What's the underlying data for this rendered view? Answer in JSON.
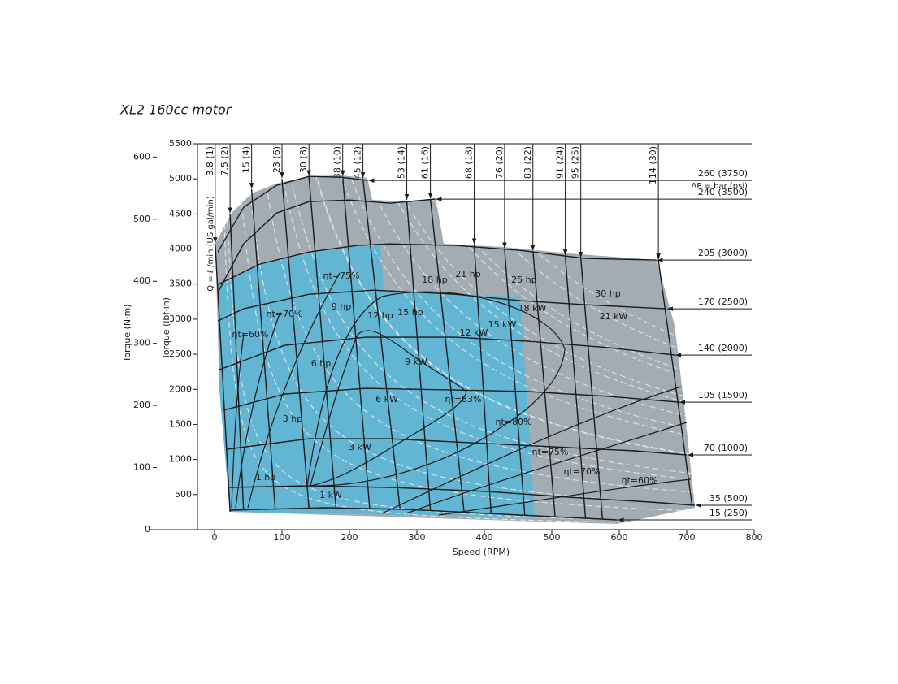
{
  "chart_data": {
    "type": "performance",
    "title": "XL2 160cc motor",
    "x_label": "Speed (RPM)",
    "y_label": "Torque (lbf·in)",
    "y2_label": "Torque (N·m)",
    "xlim": [
      -25,
      800
    ],
    "xticks": [
      0,
      100,
      200,
      300,
      400,
      500,
      600,
      700,
      800
    ],
    "ylim": [
      0,
      5500
    ],
    "yticks": [
      500,
      1000,
      1500,
      2000,
      2500,
      3000,
      3500,
      4000,
      4500,
      5000,
      5500
    ],
    "y2lim": [
      0,
      621.4
    ],
    "y2ticks": [
      0,
      100,
      200,
      300,
      400,
      500,
      600
    ],
    "pressure_label": "ΔP = bar (psi)",
    "flow_label": "Q = ℓ /min (US gal/min)",
    "colors": {
      "continuous": "#62b6d4",
      "intermittent": "#a3acb3",
      "line": "#1a1a1a",
      "power": "#dfe5e9"
    },
    "pressure_series": [
      {
        "name": "260 (3750)",
        "x": [
          5,
          43,
          92,
          140,
          188,
          227
        ],
        "values": [
          3958,
          4595,
          4907,
          5035,
          5023,
          4977
        ]
      },
      {
        "name": "240 (3500)",
        "x": [
          5,
          43,
          92,
          140,
          200,
          260,
          327
        ],
        "values": [
          3380,
          4074,
          4514,
          4676,
          4699,
          4653,
          4711
        ]
      },
      {
        "name": "205 (3000)",
        "x": [
          5,
          67,
          140,
          212,
          260,
          357,
          453,
          549,
          655
        ],
        "values": [
          3495,
          3785,
          3958,
          4051,
          4074,
          4051,
          3981,
          3866,
          3843
        ]
      },
      {
        "name": "170 (2500)",
        "x": [
          5,
          43,
          140,
          236,
          357,
          453,
          549,
          670
        ],
        "values": [
          2975,
          3148,
          3356,
          3414,
          3356,
          3264,
          3206,
          3148
        ]
      },
      {
        "name": "140 (2000)",
        "x": [
          7,
          104,
          224,
          357,
          465,
          586,
          682
        ],
        "values": [
          2280,
          2627,
          2743,
          2743,
          2685,
          2593,
          2488
        ]
      },
      {
        "name": "105 (1500)",
        "x": [
          13,
          104,
          224,
          357,
          465,
          586,
          688
        ],
        "values": [
          1701,
          1933,
          2014,
          1991,
          1968,
          1898,
          1817
        ]
      },
      {
        "name": "70 (1000)",
        "x": [
          19,
          140,
          260,
          381,
          501,
          622,
          700
        ],
        "values": [
          1146,
          1296,
          1296,
          1238,
          1181,
          1123,
          1065
        ]
      },
      {
        "name": "35 (500)",
        "x": [
          22,
          140,
          260,
          405,
          525,
          646,
          712
        ],
        "values": [
          602,
          625,
          602,
          544,
          463,
          394,
          347
        ]
      },
      {
        "name": "15 (250)",
        "x": [
          23,
          164,
          284,
          405,
          525,
          597
        ],
        "values": [
          278,
          313,
          289,
          231,
          174,
          139
        ]
      }
    ],
    "flow_series": [
      {
        "name": "3.8 (1)",
        "x": [
          1,
          23
        ],
        "values": [
          4074,
          255
        ]
      },
      {
        "name": "7.5 (2)",
        "x": [
          23,
          43
        ],
        "values": [
          4500,
          280
        ]
      },
      {
        "name": "15 (4)",
        "x": [
          55,
          90
        ],
        "values": [
          4850,
          280
        ]
      },
      {
        "name": "23 (6)",
        "x": [
          100,
          140
        ],
        "values": [
          5000,
          300
        ]
      },
      {
        "name": "30 (8)",
        "x": [
          140,
          180
        ],
        "values": [
          5030,
          300
        ]
      },
      {
        "name": "38 (10)",
        "x": [
          190,
          230
        ],
        "values": [
          5030,
          300
        ]
      },
      {
        "name": "45 (12)",
        "x": [
          220,
          275
        ],
        "values": [
          5000,
          290
        ]
      },
      {
        "name": "53 (14)",
        "x": [
          285,
          320
        ],
        "values": [
          4690,
          270
        ]
      },
      {
        "name": "61 (16)",
        "x": [
          320,
          370
        ],
        "values": [
          4710,
          250
        ]
      },
      {
        "name": "68 (18)",
        "x": [
          385,
          410
        ],
        "values": [
          4060,
          230
        ]
      },
      {
        "name": "76 (20)",
        "x": [
          430,
          460
        ],
        "values": [
          4000,
          200
        ]
      },
      {
        "name": "83 (22)",
        "x": [
          472,
          505
        ],
        "values": [
          3970,
          180
        ]
      },
      {
        "name": "91 (24)",
        "x": [
          520,
          550
        ],
        "values": [
          3900,
          160
        ]
      },
      {
        "name": "95 (25)",
        "x": [
          543,
          575
        ],
        "values": [
          3870,
          150
        ]
      },
      {
        "name": "114 (30)",
        "x": [
          658,
          708
        ],
        "values": [
          3843,
          347
        ]
      }
    ],
    "power_hp": {
      "values": [
        1,
        3,
        6,
        9,
        12,
        15,
        18,
        21,
        25,
        30
      ],
      "value_labels": [
        "1 hp",
        "3 hp",
        "6 hp",
        "9 hp",
        "12 hp",
        "15 hp",
        "18 hp",
        "21 hp",
        "25 hp",
        "30 hp"
      ]
    },
    "power_kw": {
      "values": [
        1,
        3,
        6,
        9,
        12,
        15,
        18,
        21
      ],
      "value_labels": [
        "1 kW",
        "3 kW",
        "6 kW",
        "9 kW",
        "12 kW",
        "15 kW",
        "18 kW",
        "21 kW"
      ]
    },
    "efficiency": {
      "values": [
        60,
        70,
        75,
        83,
        80,
        75,
        70,
        60
      ],
      "value_labels": [
        "ηt=60%",
        "ηt=70%",
        "ηt=75%",
        "ηt=83%",
        "ηt=80%",
        "ηt=75%",
        "ηt=70%",
        "ηt=60%"
      ]
    }
  }
}
